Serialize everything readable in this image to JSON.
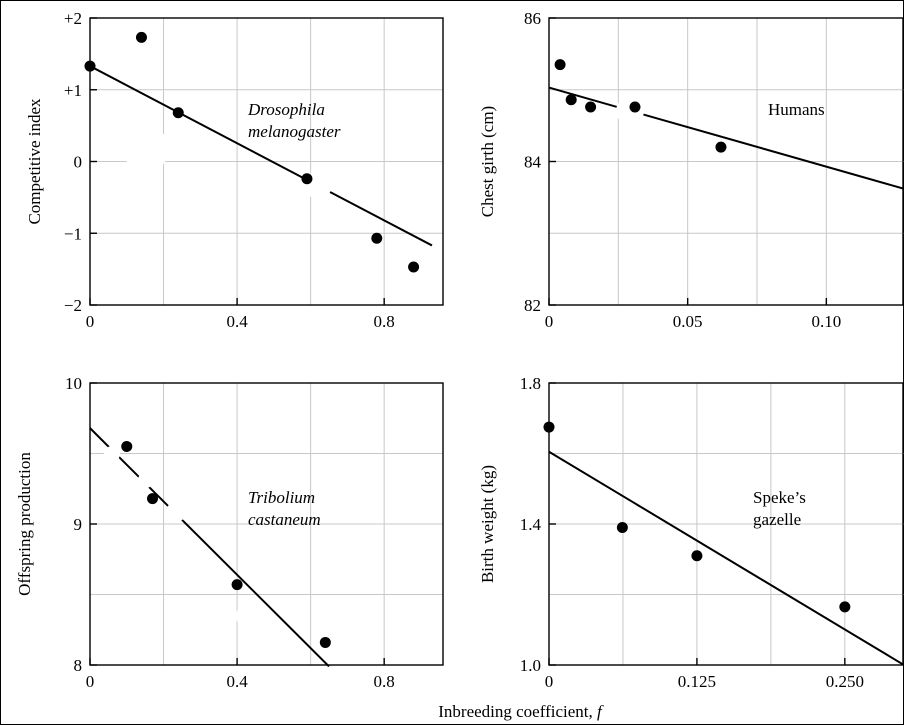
{
  "figure": {
    "shared_xlabel_prefix": "Inbreeding coefficient, ",
    "shared_xlabel_var": "f"
  },
  "chart_data": [
    {
      "type": "scatter",
      "title": "",
      "ylabel": "Competitive index",
      "xlabel": "",
      "annotation_lines": [
        "Drosophila",
        "melanogaster"
      ],
      "annotation_italic": true,
      "xlim": [
        0,
        0.96
      ],
      "ylim": [
        -2,
        2
      ],
      "xticks": [
        0,
        0.4,
        0.8
      ],
      "xtick_labels": [
        "0",
        "0.4",
        "0.8"
      ],
      "yticks": [
        -2,
        -1,
        0,
        1,
        2
      ],
      "ytick_labels": [
        "−2",
        "−1",
        "0",
        "+1",
        "+2"
      ],
      "xgrid": [
        0.2,
        0.4,
        0.6,
        0.8
      ],
      "ygrid": [
        -1,
        0,
        1
      ],
      "grid": true,
      "fit_line": {
        "x": [
          0,
          0.93
        ],
        "y": [
          1.33,
          -1.17
        ]
      },
      "points": [
        {
          "x": 0.0,
          "y": 1.33
        },
        {
          "x": 0.14,
          "y": 1.73
        },
        {
          "x": 0.24,
          "y": 0.68
        },
        {
          "x": 0.59,
          "y": -0.24
        },
        {
          "x": 0.78,
          "y": -1.07
        },
        {
          "x": 0.88,
          "y": -1.47
        }
      ]
    },
    {
      "type": "scatter",
      "title": "",
      "ylabel": "Chest girth (cm)",
      "xlabel": "",
      "annotation_lines": [
        "Humans"
      ],
      "annotation_italic": false,
      "xlim": [
        0,
        0.128
      ],
      "ylim": [
        82,
        86
      ],
      "xticks": [
        0,
        0.05,
        0.1
      ],
      "xtick_labels": [
        "0",
        "0.05",
        "0.10"
      ],
      "yticks": [
        82,
        84,
        86
      ],
      "ytick_labels": [
        "82",
        "84",
        "86"
      ],
      "xgrid": [
        0.025,
        0.05,
        0.075,
        0.1
      ],
      "ygrid": [
        83,
        84,
        85
      ],
      "grid": true,
      "fit_line": {
        "x": [
          0,
          0.128
        ],
        "y": [
          85.03,
          83.62
        ]
      },
      "points": [
        {
          "x": 0.004,
          "y": 85.35
        },
        {
          "x": 0.008,
          "y": 84.86
        },
        {
          "x": 0.015,
          "y": 84.76
        },
        {
          "x": 0.031,
          "y": 84.76
        },
        {
          "x": 0.062,
          "y": 84.2
        }
      ]
    },
    {
      "type": "scatter",
      "title": "",
      "ylabel": "Offspring production",
      "xlabel": "",
      "annotation_lines": [
        "Tribolium",
        "castaneum"
      ],
      "annotation_italic": true,
      "xlim": [
        0,
        0.96
      ],
      "ylim": [
        8,
        10
      ],
      "xticks": [
        0,
        0.4,
        0.8
      ],
      "xtick_labels": [
        "0",
        "0.4",
        "0.8"
      ],
      "yticks": [
        8,
        9,
        10
      ],
      "ytick_labels": [
        "8",
        "9",
        "10"
      ],
      "xgrid": [
        0.2,
        0.4,
        0.6,
        0.8
      ],
      "ygrid": [
        8.5,
        9,
        9.5
      ],
      "grid": true,
      "fit_line": {
        "x": [
          0,
          0.65
        ],
        "y": [
          9.68,
          7.99
        ]
      },
      "points": [
        {
          "x": 0.1,
          "y": 9.55
        },
        {
          "x": 0.17,
          "y": 9.18
        },
        {
          "x": 0.4,
          "y": 8.57
        },
        {
          "x": 0.64,
          "y": 8.16
        }
      ]
    },
    {
      "type": "scatter",
      "title": "",
      "ylabel": "Birth weight (kg)",
      "xlabel": "",
      "annotation_lines": [
        "Speke’s",
        "gazelle"
      ],
      "annotation_italic": false,
      "xlim": [
        0,
        0.3
      ],
      "ylim": [
        1.0,
        1.8
      ],
      "xticks": [
        0,
        0.125,
        0.25
      ],
      "xtick_labels": [
        "0",
        "0.125",
        "0.250"
      ],
      "yticks": [
        1.0,
        1.4,
        1.8
      ],
      "ytick_labels": [
        "1.0",
        "1.4",
        "1.8"
      ],
      "xgrid": [
        0.0625,
        0.125,
        0.1875,
        0.25
      ],
      "ygrid": [
        1.2,
        1.4,
        1.6
      ],
      "grid": true,
      "fit_line": {
        "x": [
          0,
          0.3
        ],
        "y": [
          1.605,
          1.0
        ]
      },
      "points": [
        {
          "x": 0.0,
          "y": 1.675
        },
        {
          "x": 0.062,
          "y": 1.39
        },
        {
          "x": 0.125,
          "y": 1.31
        },
        {
          "x": 0.25,
          "y": 1.165
        }
      ]
    }
  ]
}
